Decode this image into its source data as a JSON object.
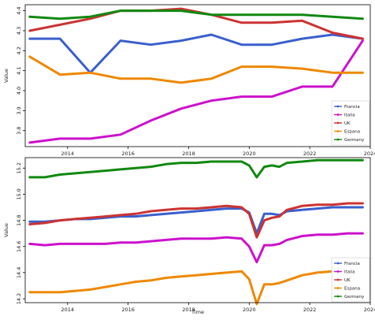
{
  "chart_data": [
    {
      "type": "line",
      "title": "",
      "xlabel": "",
      "ylabel": "Value",
      "xlim": [
        2012.6,
        2024.0
      ],
      "ylim": [
        3.72,
        4.43
      ],
      "xticks": [
        2014,
        2016,
        2018,
        2020,
        2022,
        2024
      ],
      "yticks": [
        3.8,
        3.9,
        4.0,
        4.1,
        4.2,
        4.3,
        4.4
      ],
      "ytick_labels": [
        "3.8",
        "3.9",
        "4.0",
        "4.1",
        "4.2",
        "4.3",
        "4.4"
      ],
      "grid": false,
      "legend_position": "bottom-right",
      "series": [
        {
          "name": "Francia",
          "color": "#3a5fcd",
          "x": [
            2012.75,
            2013.75,
            2014.75,
            2015.75,
            2016.75,
            2017.75,
            2018.75,
            2019.75,
            2020.75,
            2021.75,
            2022.75,
            2023.75
          ],
          "y": [
            4.26,
            4.26,
            4.09,
            4.25,
            4.23,
            4.25,
            4.28,
            4.23,
            4.23,
            4.26,
            4.28,
            4.26
          ]
        },
        {
          "name": "Italia",
          "color": "#cc11cc",
          "x": [
            2012.75,
            2013.75,
            2014.75,
            2015.75,
            2016.75,
            2017.75,
            2018.75,
            2019.75,
            2020.75,
            2021.75,
            2022.75,
            2023.75
          ],
          "y": [
            3.74,
            3.76,
            3.76,
            3.78,
            3.85,
            3.91,
            3.95,
            3.97,
            3.97,
            4.02,
            4.02,
            4.25
          ]
        },
        {
          "name": "UK",
          "color": "#cc3333",
          "x": [
            2012.75,
            2013.75,
            2014.75,
            2015.75,
            2016.75,
            2017.75,
            2018.75,
            2019.75,
            2020.75,
            2021.75,
            2022.75,
            2023.75
          ],
          "y": [
            4.3,
            4.33,
            4.36,
            4.4,
            4.4,
            4.41,
            4.38,
            4.34,
            4.34,
            4.35,
            4.29,
            4.26
          ]
        },
        {
          "name": "Espana",
          "color": "#ee8800",
          "x": [
            2012.75,
            2013.75,
            2014.75,
            2015.75,
            2016.75,
            2017.75,
            2018.75,
            2019.75,
            2020.75,
            2021.75,
            2022.75,
            2023.75
          ],
          "y": [
            4.17,
            4.08,
            4.09,
            4.06,
            4.06,
            4.04,
            4.06,
            4.12,
            4.12,
            4.11,
            4.09,
            4.09
          ]
        },
        {
          "name": "Germany",
          "color": "#118811",
          "x": [
            2012.75,
            2013.75,
            2014.75,
            2015.75,
            2016.75,
            2017.75,
            2018.75,
            2019.75,
            2020.75,
            2021.75,
            2022.75,
            2023.75
          ],
          "y": [
            4.37,
            4.36,
            4.37,
            4.4,
            4.4,
            4.4,
            4.38,
            4.38,
            4.38,
            4.38,
            4.37,
            4.36
          ]
        }
      ]
    },
    {
      "type": "line",
      "title": "",
      "xlabel": "Time",
      "ylabel": "Value",
      "xlim": [
        2012.6,
        2024.0
      ],
      "ylim": [
        14.17,
        15.28
      ],
      "xticks": [
        2014,
        2016,
        2018,
        2020,
        2022,
        2024
      ],
      "yticks": [
        14.2,
        14.4,
        14.6,
        14.8,
        15.0,
        15.2
      ],
      "ytick_labels": [
        "14.2",
        "14.4",
        "14.6",
        "14.8",
        "15.0",
        "15.2"
      ],
      "grid": false,
      "legend_position": "bottom-right",
      "series": [
        {
          "name": "Francia",
          "color": "#3a5fcd",
          "x": [
            2012.75,
            2013.25,
            2013.75,
            2014.25,
            2014.75,
            2015.25,
            2015.75,
            2016.25,
            2016.75,
            2017.25,
            2017.75,
            2018.25,
            2018.75,
            2019.25,
            2019.75,
            2020.0,
            2020.25,
            2020.5,
            2020.75,
            2021.0,
            2021.25,
            2021.75,
            2022.25,
            2022.75,
            2023.25,
            2023.75
          ],
          "y": [
            14.79,
            14.79,
            14.8,
            14.81,
            14.81,
            14.82,
            14.83,
            14.83,
            14.84,
            14.85,
            14.86,
            14.87,
            14.88,
            14.89,
            14.89,
            14.86,
            14.7,
            14.85,
            14.85,
            14.84,
            14.87,
            14.88,
            14.89,
            14.9,
            14.9,
            14.9
          ]
        },
        {
          "name": "Italia",
          "color": "#cc11cc",
          "x": [
            2012.75,
            2013.25,
            2013.75,
            2014.25,
            2014.75,
            2015.25,
            2015.75,
            2016.25,
            2016.75,
            2017.25,
            2017.75,
            2018.25,
            2018.75,
            2019.25,
            2019.75,
            2020.0,
            2020.25,
            2020.5,
            2020.75,
            2021.0,
            2021.25,
            2021.75,
            2022.25,
            2022.75,
            2023.25,
            2023.75
          ],
          "y": [
            14.62,
            14.61,
            14.62,
            14.62,
            14.62,
            14.62,
            14.63,
            14.63,
            14.64,
            14.65,
            14.66,
            14.66,
            14.66,
            14.67,
            14.66,
            14.6,
            14.48,
            14.61,
            14.61,
            14.62,
            14.65,
            14.68,
            14.69,
            14.69,
            14.7,
            14.7
          ]
        },
        {
          "name": "UK",
          "color": "#cc3333",
          "x": [
            2012.75,
            2013.25,
            2013.75,
            2014.25,
            2014.75,
            2015.25,
            2015.75,
            2016.25,
            2016.75,
            2017.25,
            2017.75,
            2018.25,
            2018.75,
            2019.25,
            2019.75,
            2020.0,
            2020.25,
            2020.5,
            2020.75,
            2021.0,
            2021.25,
            2021.75,
            2022.25,
            2022.75,
            2023.25,
            2023.75
          ],
          "y": [
            14.77,
            14.78,
            14.8,
            14.81,
            14.82,
            14.83,
            14.84,
            14.85,
            14.87,
            14.88,
            14.89,
            14.89,
            14.9,
            14.91,
            14.9,
            14.85,
            14.67,
            14.8,
            14.82,
            14.83,
            14.88,
            14.91,
            14.92,
            14.92,
            14.93,
            14.93
          ]
        },
        {
          "name": "Espana",
          "color": "#ee8800",
          "x": [
            2012.75,
            2013.25,
            2013.75,
            2014.25,
            2014.75,
            2015.25,
            2015.75,
            2016.25,
            2016.75,
            2017.25,
            2017.75,
            2018.25,
            2018.75,
            2019.25,
            2019.75,
            2020.0,
            2020.25,
            2020.5,
            2020.75,
            2021.0,
            2021.25,
            2021.75,
            2022.25,
            2022.75,
            2023.25,
            2023.75
          ],
          "y": [
            14.25,
            14.25,
            14.25,
            14.26,
            14.27,
            14.29,
            14.31,
            14.33,
            14.34,
            14.36,
            14.37,
            14.38,
            14.39,
            14.4,
            14.41,
            14.35,
            14.16,
            14.31,
            14.31,
            14.32,
            14.34,
            14.38,
            14.4,
            14.41,
            14.42,
            14.43
          ]
        },
        {
          "name": "Germany",
          "color": "#118811",
          "x": [
            2012.75,
            2013.25,
            2013.75,
            2014.25,
            2014.75,
            2015.25,
            2015.75,
            2016.25,
            2016.75,
            2017.25,
            2017.75,
            2018.25,
            2018.75,
            2019.25,
            2019.75,
            2020.0,
            2020.25,
            2020.5,
            2020.75,
            2021.0,
            2021.25,
            2021.75,
            2022.25,
            2022.75,
            2023.25,
            2023.75
          ],
          "y": [
            15.13,
            15.13,
            15.15,
            15.16,
            15.17,
            15.18,
            15.19,
            15.2,
            15.21,
            15.23,
            15.24,
            15.24,
            15.25,
            15.25,
            15.25,
            15.22,
            15.13,
            15.21,
            15.22,
            15.21,
            15.24,
            15.25,
            15.26,
            15.26,
            15.26,
            15.26
          ]
        }
      ]
    }
  ]
}
